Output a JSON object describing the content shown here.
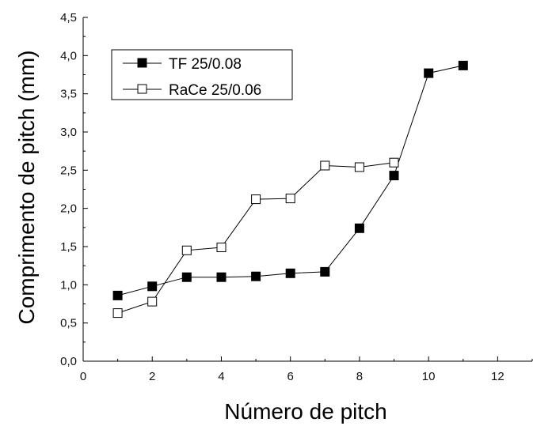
{
  "chart_data": {
    "type": "line",
    "title": "",
    "xlabel": "Número de pitch",
    "ylabel": "Comprimento de pitch (mm)",
    "xlim": [
      0,
      13
    ],
    "ylim": [
      0,
      4.5
    ],
    "xticks": [
      0,
      2,
      4,
      6,
      8,
      10,
      12
    ],
    "yticks": [
      0,
      0.5,
      1,
      1.5,
      2,
      2.5,
      3,
      3.5,
      4,
      4.5
    ],
    "xtick_labels": [
      "0",
      "2",
      "4",
      "6",
      "8",
      "10",
      "12"
    ],
    "ytick_labels": [
      "0,0",
      "0,5",
      "1,0",
      "1,5",
      "2,0",
      "2,5",
      "3,0",
      "3,5",
      "4,0",
      "4,5"
    ],
    "legend_position": "top-left",
    "grid": false,
    "series": [
      {
        "name": "TF 25/0.08",
        "marker": "filled-square",
        "color": "#000000",
        "x": [
          1,
          2,
          3,
          4,
          5,
          6,
          7,
          8,
          9,
          10,
          11
        ],
        "y": [
          0.86,
          0.98,
          1.1,
          1.1,
          1.11,
          1.15,
          1.17,
          1.74,
          2.43,
          3.77,
          3.87
        ]
      },
      {
        "name": "RaCe 25/0.06",
        "marker": "open-square",
        "color": "#000000",
        "x": [
          1,
          2,
          3,
          4,
          5,
          6,
          7,
          8,
          9
        ],
        "y": [
          0.63,
          0.78,
          1.45,
          1.49,
          2.12,
          2.13,
          2.56,
          2.54,
          2.6
        ]
      }
    ]
  }
}
